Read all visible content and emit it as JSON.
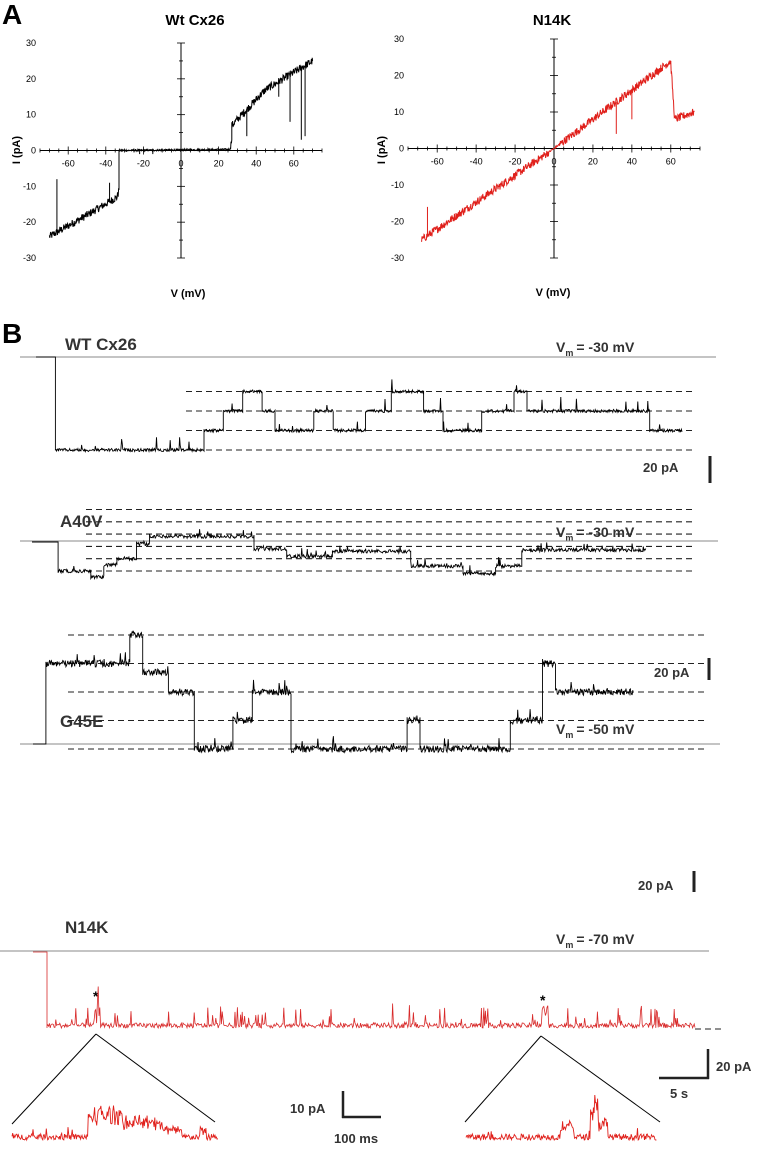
{
  "panel_labels": {
    "a": "A",
    "b": "B"
  },
  "colors": {
    "wt": "#000000",
    "mutant": "#e0201b",
    "n14k_trace": "#d82a2a",
    "reference_line": "#888888"
  },
  "chart_data": [
    {
      "id": "iv_wt",
      "type": "line",
      "title": "Wt Cx26",
      "xlabel": "V (mV)",
      "ylabel": "I (pA)",
      "xlim": [
        -75,
        75
      ],
      "ylim": [
        -30,
        30
      ],
      "xticks": [
        -60,
        -40,
        -20,
        0,
        20,
        40,
        60
      ],
      "yticks": [
        -30,
        -20,
        -10,
        0,
        10,
        20,
        30
      ],
      "color": "#000000",
      "series": [
        {
          "x": [
            -70,
            -50,
            -34,
            -33,
            -33,
            26,
            27,
            27,
            45,
            70
          ],
          "y": [
            -24,
            -18,
            -13,
            -11,
            0,
            0.3,
            3,
            7,
            17,
            25
          ]
        }
      ],
      "spikes": [
        [
          -66,
          -8
        ],
        [
          -38,
          -9
        ],
        [
          -22,
          -1
        ],
        [
          -15,
          -1
        ],
        [
          35,
          4
        ],
        [
          52,
          15
        ],
        [
          58,
          8
        ],
        [
          64,
          3
        ],
        [
          66,
          4
        ]
      ]
    },
    {
      "id": "iv_n14k",
      "type": "line",
      "title": "N14K",
      "xlabel": "V (mV)",
      "ylabel": "I (pA)",
      "xlim": [
        -75,
        75
      ],
      "ylim": [
        -30,
        30
      ],
      "xticks": [
        -60,
        -40,
        -20,
        0,
        20,
        40,
        60
      ],
      "yticks": [
        -30,
        -20,
        -10,
        0,
        10,
        20,
        30
      ],
      "color": "#e0201b",
      "series": [
        {
          "x": [
            -68,
            0,
            60,
            60,
            62,
            72
          ],
          "y": [
            -25,
            0,
            24,
            23,
            8,
            10
          ]
        }
      ],
      "spikes": [
        [
          -65,
          -16
        ],
        [
          32,
          4
        ],
        [
          40,
          8
        ]
      ]
    },
    {
      "id": "trace_wt",
      "type": "line",
      "title": "WT Cx26",
      "annotation": {
        "prefix": "V",
        "sub": "m",
        "value": "= -30 mV"
      },
      "scale_bar": "20 pA",
      "levels": [
        0,
        1,
        2,
        3
      ],
      "segments": [
        [
          0,
          0.03,
          0
        ],
        [
          0.03,
          0.26,
          0
        ],
        [
          0.26,
          0.29,
          1
        ],
        [
          0.29,
          0.32,
          2
        ],
        [
          0.32,
          0.35,
          3
        ],
        [
          0.35,
          0.37,
          2
        ],
        [
          0.37,
          0.43,
          1
        ],
        [
          0.43,
          0.46,
          2
        ],
        [
          0.46,
          0.51,
          1
        ],
        [
          0.51,
          0.55,
          2
        ],
        [
          0.55,
          0.6,
          3
        ],
        [
          0.6,
          0.63,
          2
        ],
        [
          0.63,
          0.69,
          1
        ],
        [
          0.69,
          0.74,
          2
        ],
        [
          0.74,
          0.76,
          3
        ],
        [
          0.76,
          0.95,
          2
        ],
        [
          0.95,
          1,
          1
        ]
      ]
    },
    {
      "id": "trace_a40v",
      "type": "line",
      "title": "A40V",
      "annotation": {
        "prefix": "V",
        "sub": "m",
        "value": "= -30 mV"
      },
      "scale_bar": "20 pA",
      "levels": [
        0,
        1,
        2,
        3,
        4,
        5
      ],
      "segments": [
        [
          0,
          0.04,
          0
        ],
        [
          0.04,
          0.09,
          0
        ],
        [
          0.09,
          0.11,
          -0.5
        ],
        [
          0.11,
          0.13,
          0.5
        ],
        [
          0.13,
          0.16,
          1
        ],
        [
          0.16,
          0.18,
          2.2
        ],
        [
          0.18,
          0.34,
          2.8
        ],
        [
          0.34,
          0.39,
          1.8
        ],
        [
          0.39,
          0.46,
          1.2
        ],
        [
          0.46,
          0.58,
          1.6
        ],
        [
          0.58,
          0.66,
          0.4
        ],
        [
          0.66,
          0.71,
          -0.2
        ],
        [
          0.71,
          0.75,
          0.4
        ],
        [
          0.75,
          0.92,
          1.7
        ],
        [
          0.92,
          0.94,
          1.7
        ]
      ]
    },
    {
      "id": "trace_g45e",
      "type": "line",
      "title": "G45E",
      "annotation": {
        "prefix": "V",
        "sub": "m",
        "value": "= -50 mV"
      },
      "scale_bar": "20 pA",
      "levels": [
        0,
        1,
        2,
        3,
        4
      ],
      "segments": [
        [
          0,
          0.02,
          0
        ],
        [
          0.02,
          0.15,
          3
        ],
        [
          0.15,
          0.17,
          4
        ],
        [
          0.17,
          0.21,
          2.7
        ],
        [
          0.21,
          0.25,
          2
        ],
        [
          0.25,
          0.31,
          0
        ],
        [
          0.31,
          0.34,
          1
        ],
        [
          0.34,
          0.4,
          2
        ],
        [
          0.4,
          0.58,
          0
        ],
        [
          0.58,
          0.6,
          1
        ],
        [
          0.6,
          0.74,
          0
        ],
        [
          0.74,
          0.79,
          1
        ],
        [
          0.79,
          0.81,
          3
        ],
        [
          0.81,
          0.93,
          2
        ]
      ]
    },
    {
      "id": "trace_n14k",
      "type": "line",
      "title": "N14K",
      "annotation": {
        "prefix": "V",
        "sub": "m",
        "value": "= -70 mV"
      },
      "markers": [
        "*",
        "*"
      ],
      "scale_bars": {
        "current": "20 pA",
        "time": "5 s"
      }
    },
    {
      "id": "insets_n14k",
      "type": "line",
      "scale_bars": {
        "current": "10 pA",
        "time": "100 ms"
      }
    }
  ]
}
